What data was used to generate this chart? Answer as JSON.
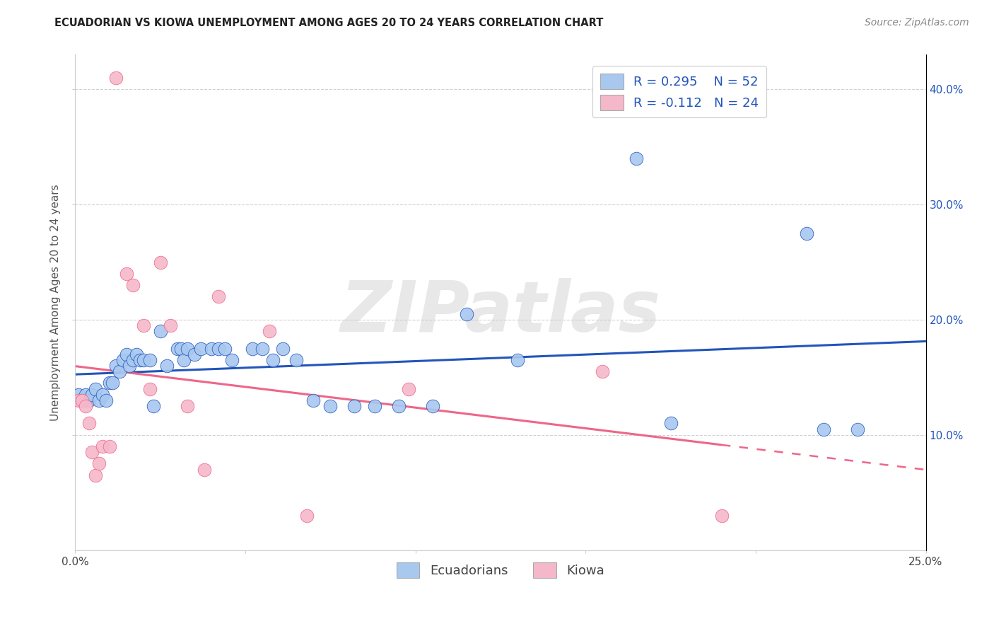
{
  "title": "ECUADORIAN VS KIOWA UNEMPLOYMENT AMONG AGES 20 TO 24 YEARS CORRELATION CHART",
  "source": "Source: ZipAtlas.com",
  "ylabel": "Unemployment Among Ages 20 to 24 years",
  "xlim": [
    0.0,
    0.25
  ],
  "ylim": [
    0.0,
    0.42
  ],
  "xticks": [
    0.0,
    0.05,
    0.1,
    0.15,
    0.2,
    0.25
  ],
  "yticks": [
    0.1,
    0.2,
    0.3,
    0.4
  ],
  "xticklabels_left": "0.0%",
  "xticklabels_right": "25.0%",
  "yticklabels": [
    "10.0%",
    "20.0%",
    "30.0%",
    "40.0%"
  ],
  "ecuadorians_color": "#A8C8F0",
  "kiowa_color": "#F5B8CB",
  "trend_blue": "#2255BB",
  "trend_pink": "#EE6688",
  "ecuadorians_x": [
    0.001,
    0.002,
    0.003,
    0.004,
    0.005,
    0.006,
    0.007,
    0.008,
    0.009,
    0.01,
    0.011,
    0.012,
    0.013,
    0.014,
    0.015,
    0.016,
    0.017,
    0.018,
    0.019,
    0.02,
    0.022,
    0.023,
    0.025,
    0.027,
    0.03,
    0.031,
    0.032,
    0.033,
    0.035,
    0.037,
    0.04,
    0.042,
    0.044,
    0.046,
    0.052,
    0.055,
    0.058,
    0.061,
    0.065,
    0.07,
    0.075,
    0.082,
    0.088,
    0.095,
    0.105,
    0.115,
    0.13,
    0.165,
    0.175,
    0.215,
    0.22,
    0.23
  ],
  "ecuadorians_y": [
    0.135,
    0.13,
    0.135,
    0.13,
    0.135,
    0.14,
    0.13,
    0.135,
    0.13,
    0.145,
    0.145,
    0.16,
    0.155,
    0.165,
    0.17,
    0.16,
    0.165,
    0.17,
    0.165,
    0.165,
    0.165,
    0.125,
    0.19,
    0.16,
    0.175,
    0.175,
    0.165,
    0.175,
    0.17,
    0.175,
    0.175,
    0.175,
    0.175,
    0.165,
    0.175,
    0.175,
    0.165,
    0.175,
    0.165,
    0.13,
    0.125,
    0.125,
    0.125,
    0.125,
    0.125,
    0.205,
    0.165,
    0.34,
    0.11,
    0.275,
    0.105,
    0.105
  ],
  "kiowa_x": [
    0.001,
    0.002,
    0.003,
    0.004,
    0.005,
    0.006,
    0.007,
    0.008,
    0.01,
    0.012,
    0.015,
    0.017,
    0.02,
    0.022,
    0.025,
    0.028,
    0.033,
    0.038,
    0.042,
    0.057,
    0.068,
    0.098,
    0.155,
    0.19
  ],
  "kiowa_y": [
    0.13,
    0.13,
    0.125,
    0.11,
    0.085,
    0.065,
    0.075,
    0.09,
    0.09,
    0.41,
    0.24,
    0.23,
    0.195,
    0.14,
    0.25,
    0.195,
    0.125,
    0.07,
    0.22,
    0.19,
    0.03,
    0.14,
    0.155,
    0.03
  ],
  "watermark": "ZIPatlas",
  "background_color": "#FFFFFF",
  "grid_color": "#CCCCCC",
  "title_fontsize": 10.5,
  "source_fontsize": 10,
  "legend_fontsize": 13,
  "axis_label_fontsize": 11,
  "tick_fontsize": 11
}
